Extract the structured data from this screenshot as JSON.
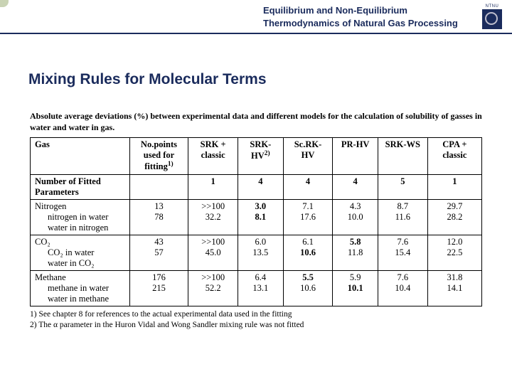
{
  "header": {
    "line1": "Equilibrium and Non-Equilibrium",
    "line2": "Thermodynamics of Natural Gas Processing",
    "logo_label": "NTNU"
  },
  "slide_title": "Mixing Rules for Molecular Terms",
  "caption": "Absolute average deviations (%) between experimental data and different models for the calculation of solubility of gasses in water and water in gas.",
  "table": {
    "columns": [
      "Gas",
      "No.points used for fitting",
      "SRK + classic",
      "SRK-HV",
      "Sc.RK-HV",
      "PR-HV",
      "SRK-WS",
      "CPA + classic"
    ],
    "col_sup": [
      "",
      "1)",
      "",
      "2)",
      "",
      "",
      "",
      ""
    ],
    "param_row": {
      "label": "Number of Fitted Parameters",
      "values": [
        "",
        "1",
        "4",
        "4",
        "4",
        "5",
        "1"
      ]
    },
    "groups": [
      {
        "header": "Nitrogen",
        "rows": [
          {
            "label": "nitrogen in water",
            "vals": [
              "13",
              ">>100",
              "3.0",
              "7.1",
              "4.3",
              "8.7",
              "29.7"
            ],
            "bold": [
              0,
              0,
              1,
              0,
              0,
              0,
              0
            ]
          },
          {
            "label": "water in nitrogen",
            "vals": [
              "78",
              "32.2",
              "8.1",
              "17.6",
              "10.0",
              "11.6",
              "28.2"
            ],
            "bold": [
              0,
              0,
              1,
              0,
              0,
              0,
              0
            ]
          }
        ]
      },
      {
        "header": "CO₂",
        "rows": [
          {
            "label": "CO₂ in water",
            "vals": [
              "43",
              ">>100",
              "6.0",
              "6.1",
              "5.8",
              "7.6",
              "12.0"
            ],
            "bold": [
              0,
              0,
              0,
              0,
              1,
              0,
              0
            ]
          },
          {
            "label": "water in CO₂",
            "vals": [
              "57",
              "45.0",
              "13.5",
              "10.6",
              "11.8",
              "15.4",
              "22.5"
            ],
            "bold": [
              0,
              0,
              0,
              1,
              0,
              0,
              0
            ]
          }
        ]
      },
      {
        "header": "Methane",
        "rows": [
          {
            "label": "methane in water",
            "vals": [
              "176",
              ">>100",
              "6.4",
              "5.5",
              "5.9",
              "7.6",
              "31.8"
            ],
            "bold": [
              0,
              0,
              0,
              1,
              0,
              0,
              0
            ]
          },
          {
            "label": "water in methane",
            "vals": [
              "215",
              "52.2",
              "13.1",
              "10.6",
              "10.1",
              "10.4",
              "14.1"
            ],
            "bold": [
              0,
              0,
              0,
              0,
              1,
              0,
              0
            ]
          }
        ]
      }
    ]
  },
  "footnotes": {
    "f1": "1) See chapter 8 for references to the actual experimental data used in the fitting",
    "f2": "2) The α parameter in the Huron Vidal and Wong Sandler mixing rule was not fitted"
  },
  "colors": {
    "brand": "#1a2b5c",
    "bg": "#ffffff",
    "border": "#000000"
  }
}
